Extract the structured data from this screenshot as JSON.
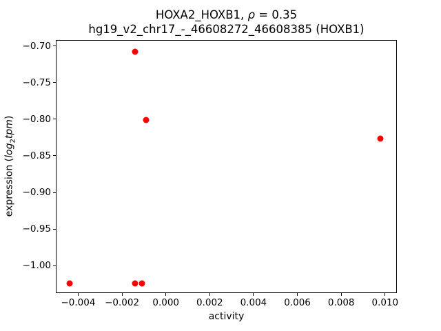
{
  "title": {
    "line1_prefix": "HOXA2_HOXB1, ",
    "line1_rho": "ρ",
    "line1_suffix": " = 0.35",
    "line2": "hg19_v2_chr17_-_46608272_46608385 (HOXB1)"
  },
  "axes": {
    "xlabel": "activity",
    "ylabel_prefix": "expression (",
    "ylabel_log": "log",
    "ylabel_sub": "2",
    "ylabel_tpm": "tpm",
    "ylabel_suffix": ")"
  },
  "chart_data": {
    "type": "scatter",
    "title": "HOXA2_HOXB1, ρ = 0.35",
    "subtitle": "hg19_v2_chr17_-_46608272_46608385 (HOXB1)",
    "xlabel": "activity",
    "ylabel": "expression (log2tpm)",
    "marker_color": "#ff0000",
    "marker_diameter_px": 9,
    "grid": false,
    "points": [
      {
        "x": -0.0014,
        "y": -0.708
      },
      {
        "x": -0.0009,
        "y": -0.801
      },
      {
        "x": 0.0098,
        "y": -0.826
      },
      {
        "x": -0.0044,
        "y": -1.024
      },
      {
        "x": -0.0014,
        "y": -1.024
      },
      {
        "x": -0.0011,
        "y": -1.024
      }
    ],
    "xlim": [
      -0.00502,
      0.01054
    ],
    "ylim": [
      -1.0374,
      -0.6918
    ],
    "xticks": [
      -0.004,
      -0.002,
      0.0,
      0.002,
      0.004,
      0.006,
      0.008,
      0.01
    ],
    "yticks": [
      -0.7,
      -0.75,
      -0.8,
      -0.85,
      -0.9,
      -0.95,
      -1.0
    ],
    "xtick_decimals": 3,
    "ytick_decimals": 2
  }
}
